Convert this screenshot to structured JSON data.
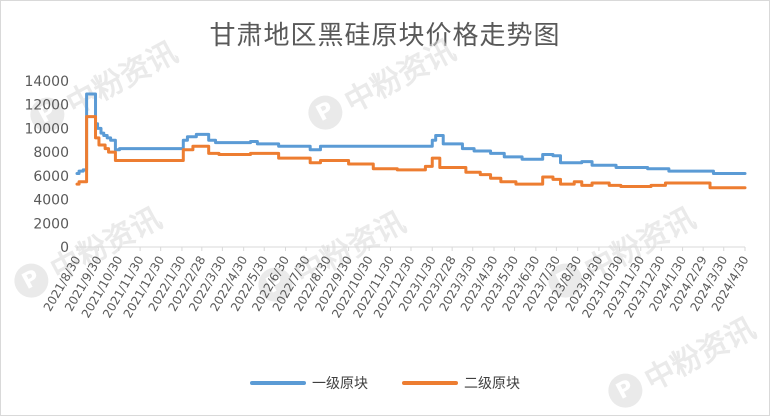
{
  "chart_data": {
    "type": "line",
    "title": "甘肃地区黑硅原块价格走势图",
    "xlabel": "",
    "ylabel": "",
    "ylim": [
      0,
      14000
    ],
    "yticks": [
      0,
      2000,
      4000,
      6000,
      8000,
      10000,
      12000,
      14000
    ],
    "grid": false,
    "legend_position": "bottom",
    "x_start": "2021/8/30",
    "x_end": "2024/4/30",
    "x_tick_labels": [
      "2021/8/30",
      "2021/9/30",
      "2021/10/30",
      "2021/11/30",
      "2021/12/30",
      "2022/1/30",
      "2022/2/28",
      "2022/3/30",
      "2022/4/30",
      "2022/5/30",
      "2022/6/30",
      "2022/7/30",
      "2022/8/30",
      "2022/9/30",
      "2022/10/30",
      "2022/11/30",
      "2022/12/30",
      "2023/1/30",
      "2023/2/28",
      "2023/3/30",
      "2023/4/30",
      "2023/5/30",
      "2023/6/30",
      "2023/7/30",
      "2023/8/30",
      "2023/9/30",
      "2023/10/30",
      "2023/11/30",
      "2023/12/30",
      "2024/1/30",
      "2024/2/29",
      "2024/3/30",
      "2024/4/30"
    ],
    "series": [
      {
        "name": "一级原块",
        "color": "#5B9BD5",
        "points": [
          [
            "2021/8/30",
            6200
          ],
          [
            "2021/9/2",
            6200
          ],
          [
            "2021/9/2",
            6400
          ],
          [
            "2021/9/8",
            6400
          ],
          [
            "2021/9/8",
            6500
          ],
          [
            "2021/9/13",
            6500
          ],
          [
            "2021/9/13",
            12900
          ],
          [
            "2021/9/26",
            12900
          ],
          [
            "2021/9/26",
            10400
          ],
          [
            "2021/9/29",
            10400
          ],
          [
            "2021/9/29",
            10000
          ],
          [
            "2021/10/4",
            10000
          ],
          [
            "2021/10/4",
            9600
          ],
          [
            "2021/10/8",
            9600
          ],
          [
            "2021/10/8",
            9400
          ],
          [
            "2021/10/13",
            9400
          ],
          [
            "2021/10/13",
            9200
          ],
          [
            "2021/10/18",
            9200
          ],
          [
            "2021/10/18",
            9000
          ],
          [
            "2021/10/25",
            9000
          ],
          [
            "2021/10/25",
            8200
          ],
          [
            "2021/10/31",
            8200
          ],
          [
            "2021/10/31",
            8300
          ],
          [
            "2022/2/1",
            8300
          ],
          [
            "2022/2/1",
            9000
          ],
          [
            "2022/2/7",
            9000
          ],
          [
            "2022/2/7",
            9300
          ],
          [
            "2022/2/20",
            9300
          ],
          [
            "2022/2/20",
            9500
          ],
          [
            "2022/3/10",
            9500
          ],
          [
            "2022/3/10",
            9000
          ],
          [
            "2022/3/20",
            9000
          ],
          [
            "2022/3/20",
            8800
          ],
          [
            "2022/5/10",
            8800
          ],
          [
            "2022/5/10",
            8900
          ],
          [
            "2022/5/20",
            8900
          ],
          [
            "2022/5/20",
            8700
          ],
          [
            "2022/6/20",
            8700
          ],
          [
            "2022/6/20",
            8500
          ],
          [
            "2022/8/5",
            8500
          ],
          [
            "2022/8/5",
            8200
          ],
          [
            "2022/8/20",
            8200
          ],
          [
            "2022/8/20",
            8500
          ],
          [
            "2023/1/30",
            8500
          ],
          [
            "2023/1/30",
            9000
          ],
          [
            "2023/2/4",
            9000
          ],
          [
            "2023/2/4",
            9400
          ],
          [
            "2023/2/15",
            9400
          ],
          [
            "2023/2/15",
            8700
          ],
          [
            "2023/3/15",
            8700
          ],
          [
            "2023/3/15",
            8300
          ],
          [
            "2023/4/1",
            8300
          ],
          [
            "2023/4/1",
            8100
          ],
          [
            "2023/4/25",
            8100
          ],
          [
            "2023/4/25",
            7900
          ],
          [
            "2023/5/15",
            7900
          ],
          [
            "2023/5/15",
            7600
          ],
          [
            "2023/6/10",
            7600
          ],
          [
            "2023/6/10",
            7400
          ],
          [
            "2023/7/10",
            7400
          ],
          [
            "2023/7/10",
            7800
          ],
          [
            "2023/7/25",
            7800
          ],
          [
            "2023/7/25",
            7700
          ],
          [
            "2023/8/5",
            7700
          ],
          [
            "2023/8/5",
            7100
          ],
          [
            "2023/9/5",
            7100
          ],
          [
            "2023/9/5",
            7200
          ],
          [
            "2023/9/20",
            7200
          ],
          [
            "2023/9/20",
            6900
          ],
          [
            "2023/10/25",
            6900
          ],
          [
            "2023/10/25",
            6700
          ],
          [
            "2023/12/10",
            6700
          ],
          [
            "2023/12/10",
            6600
          ],
          [
            "2024/1/10",
            6600
          ],
          [
            "2024/1/10",
            6400
          ],
          [
            "2024/3/15",
            6400
          ],
          [
            "2024/3/15",
            6200
          ],
          [
            "2024/4/30",
            6200
          ]
        ]
      },
      {
        "name": "二级原块",
        "color": "#ED7D31",
        "points": [
          [
            "2021/8/30",
            5300
          ],
          [
            "2021/9/2",
            5300
          ],
          [
            "2021/9/2",
            5500
          ],
          [
            "2021/9/13",
            5500
          ],
          [
            "2021/9/13",
            11000
          ],
          [
            "2021/9/26",
            11000
          ],
          [
            "2021/9/26",
            9200
          ],
          [
            "2021/10/1",
            9200
          ],
          [
            "2021/10/1",
            8600
          ],
          [
            "2021/10/10",
            8600
          ],
          [
            "2021/10/10",
            8300
          ],
          [
            "2021/10/15",
            8300
          ],
          [
            "2021/10/15",
            8000
          ],
          [
            "2021/10/25",
            8000
          ],
          [
            "2021/10/25",
            7300
          ],
          [
            "2021/10/31",
            7300
          ],
          [
            "2021/10/31",
            7300
          ],
          [
            "2022/2/1",
            7300
          ],
          [
            "2022/2/1",
            8200
          ],
          [
            "2022/2/15",
            8200
          ],
          [
            "2022/2/15",
            8500
          ],
          [
            "2022/3/10",
            8500
          ],
          [
            "2022/3/10",
            7900
          ],
          [
            "2022/3/25",
            7900
          ],
          [
            "2022/3/25",
            7800
          ],
          [
            "2022/5/10",
            7800
          ],
          [
            "2022/5/10",
            7900
          ],
          [
            "2022/6/20",
            7900
          ],
          [
            "2022/6/20",
            7500
          ],
          [
            "2022/8/5",
            7500
          ],
          [
            "2022/8/5",
            7100
          ],
          [
            "2022/8/20",
            7100
          ],
          [
            "2022/8/20",
            7300
          ],
          [
            "2022/9/30",
            7300
          ],
          [
            "2022/9/30",
            7000
          ],
          [
            "2022/11/5",
            7000
          ],
          [
            "2022/11/5",
            6600
          ],
          [
            "2022/12/10",
            6600
          ],
          [
            "2022/12/10",
            6500
          ],
          [
            "2023/1/20",
            6500
          ],
          [
            "2023/1/20",
            6800
          ],
          [
            "2023/1/30",
            6800
          ],
          [
            "2023/1/30",
            7500
          ],
          [
            "2023/2/10",
            7500
          ],
          [
            "2023/2/10",
            6700
          ],
          [
            "2023/3/20",
            6700
          ],
          [
            "2023/3/20",
            6300
          ],
          [
            "2023/4/10",
            6300
          ],
          [
            "2023/4/10",
            6100
          ],
          [
            "2023/4/25",
            6100
          ],
          [
            "2023/4/25",
            5800
          ],
          [
            "2023/5/10",
            5800
          ],
          [
            "2023/5/10",
            5500
          ],
          [
            "2023/6/1",
            5500
          ],
          [
            "2023/6/1",
            5300
          ],
          [
            "2023/7/10",
            5300
          ],
          [
            "2023/7/10",
            5900
          ],
          [
            "2023/7/25",
            5900
          ],
          [
            "2023/7/25",
            5700
          ],
          [
            "2023/8/5",
            5700
          ],
          [
            "2023/8/5",
            5300
          ],
          [
            "2023/8/25",
            5300
          ],
          [
            "2023/8/25",
            5500
          ],
          [
            "2023/9/5",
            5500
          ],
          [
            "2023/9/5",
            5200
          ],
          [
            "2023/9/20",
            5200
          ],
          [
            "2023/9/20",
            5400
          ],
          [
            "2023/10/15",
            5400
          ],
          [
            "2023/10/15",
            5200
          ],
          [
            "2023/11/1",
            5200
          ],
          [
            "2023/11/1",
            5100
          ],
          [
            "2023/12/15",
            5100
          ],
          [
            "2023/12/15",
            5200
          ],
          [
            "2024/1/5",
            5200
          ],
          [
            "2024/1/5",
            5400
          ],
          [
            "2024/3/10",
            5400
          ],
          [
            "2024/3/10",
            5000
          ],
          [
            "2024/4/30",
            5000
          ]
        ]
      }
    ]
  },
  "watermark": {
    "text": "中粉资讯",
    "logo_glyph": "P"
  }
}
